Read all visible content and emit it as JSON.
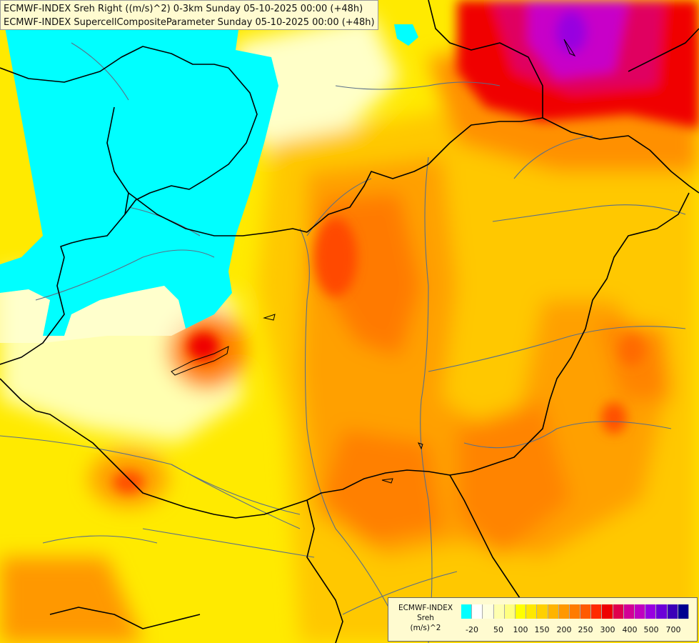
{
  "header": {
    "line1": "ECMWF-INDEX Sreh Right ((m/s)^2) 0-3km Sunday 05-10-2025 00:00 (+48h)",
    "line2": "ECMWF-INDEX SupercellCompositeParameter Sunday 05-10-2025 00:00 (+48h)"
  },
  "legend": {
    "title_lines": [
      "ECMWF-INDEX",
      "Sreh",
      "(m/s)^2"
    ],
    "colors": [
      "#00ffff",
      "#ffffff",
      "#ffffe0",
      "#ffffb0",
      "#ffff80",
      "#ffff00",
      "#ffe800",
      "#ffd000",
      "#ffb400",
      "#ff9800",
      "#ff7c00",
      "#ff5a00",
      "#ff2a00",
      "#ee0000",
      "#e0004c",
      "#d20096",
      "#c000c0",
      "#9800e0",
      "#6c00d8",
      "#3c00b8",
      "#000090"
    ],
    "tick_labels": [
      "-20",
      "50",
      "100",
      "150",
      "200",
      "250",
      "300",
      "400",
      "500",
      "700"
    ]
  },
  "palette": {
    "cyan": "#00ffff",
    "pale": "#ffffc8",
    "light_yellow": "#ffff90",
    "yellow": "#ffea00",
    "gold": "#ffc800",
    "orange": "#ffa000",
    "dark_orange": "#ff7a00",
    "red_orange": "#ff4a00",
    "red": "#f00000",
    "crimson": "#e00060",
    "magenta": "#c800c8",
    "border_color": "#000000",
    "river_color": "#5a6f88"
  }
}
